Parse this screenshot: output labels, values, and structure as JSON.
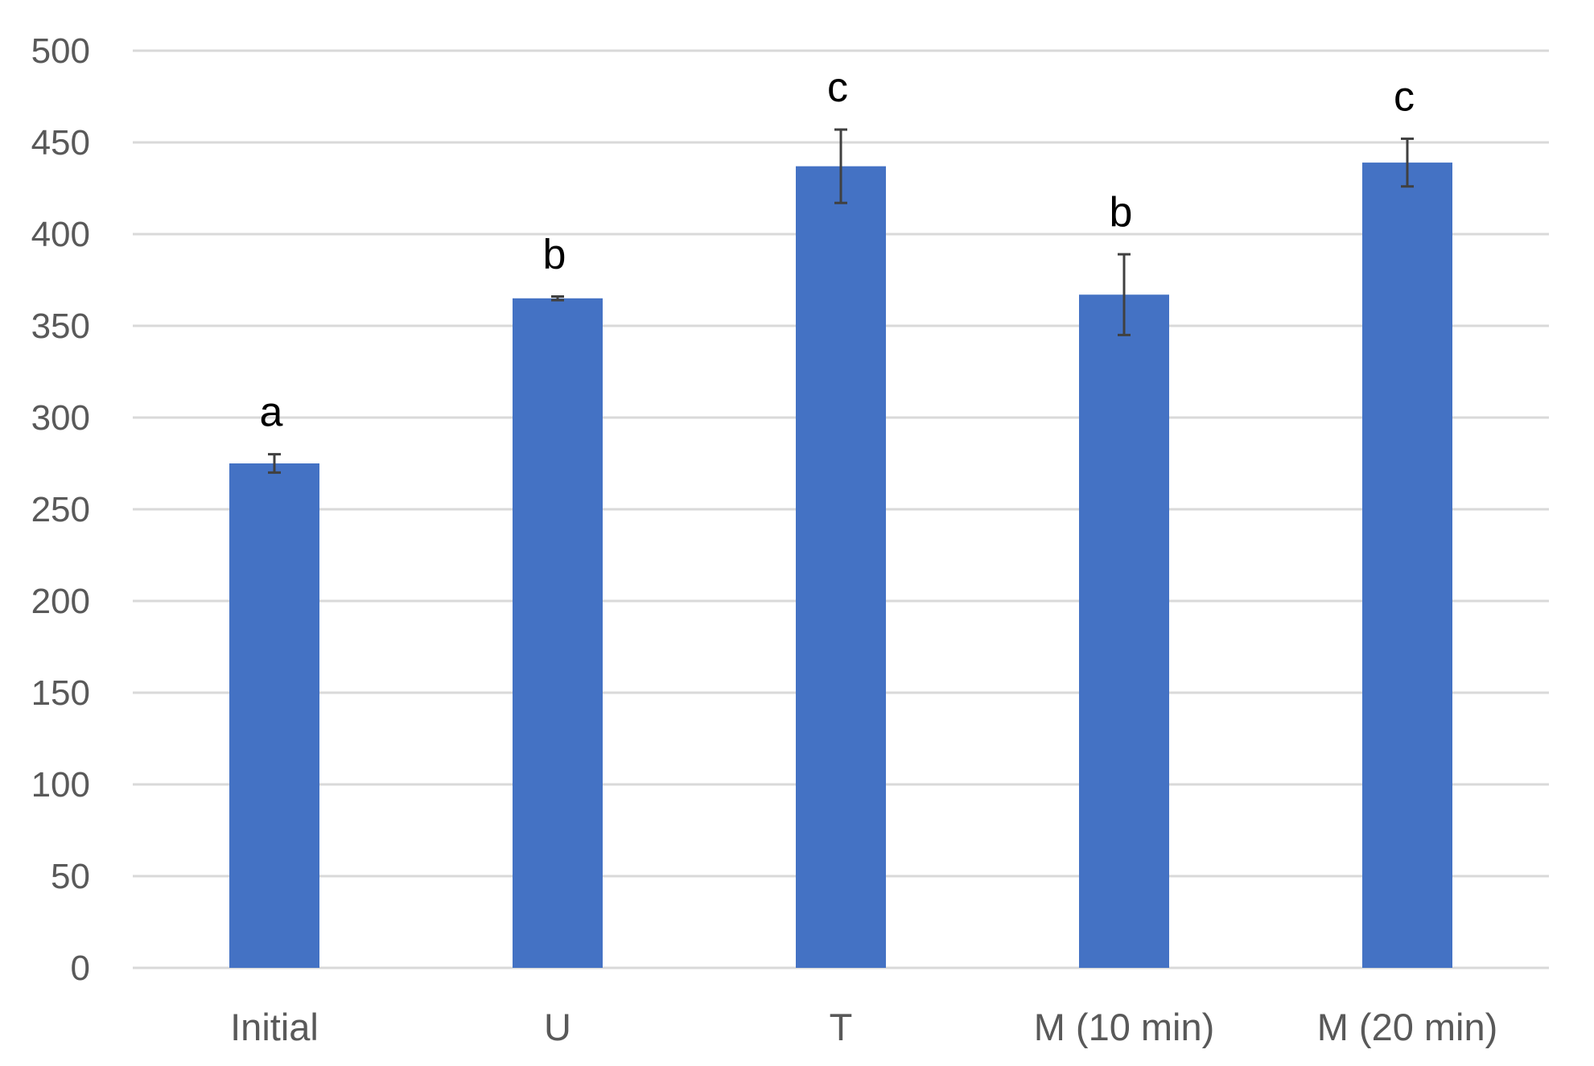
{
  "chart_data": {
    "type": "bar",
    "title": "",
    "xlabel": "",
    "ylabel": "",
    "categories": [
      "Initial",
      "U",
      "T",
      "M (10 min)",
      "M (20 min)"
    ],
    "values": [
      275,
      365,
      437,
      367,
      439
    ],
    "error": [
      5,
      1,
      20,
      22,
      13
    ],
    "significance_letters": [
      "a",
      "b",
      "c",
      "b",
      "c"
    ],
    "ylim": [
      0,
      500
    ],
    "yticks": [
      0,
      50,
      100,
      150,
      200,
      250,
      300,
      350,
      400,
      450,
      500
    ],
    "grid": true,
    "legend": "none",
    "colors": {
      "bar": "#4472C4",
      "grid": "#D9D9D9",
      "error_bar": "#404040"
    }
  }
}
